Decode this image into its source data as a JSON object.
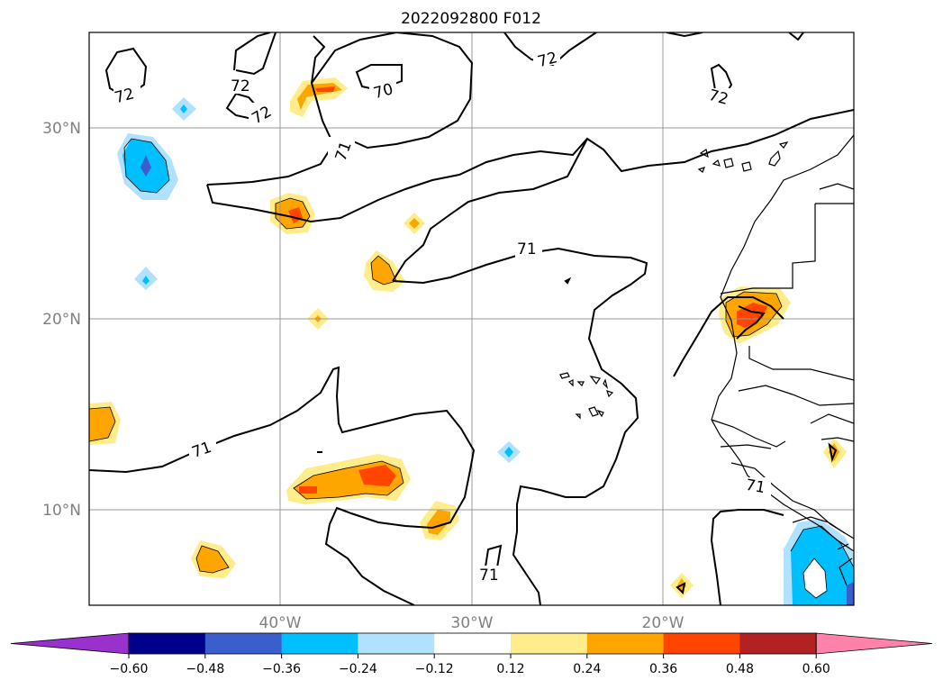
{
  "title": "2022092800 F012",
  "map": {
    "lat_labels": [
      "30°N",
      "20°N",
      "10°N"
    ],
    "lon_labels": [
      "40°W",
      "30°W",
      "20°W"
    ],
    "contour_levels": [
      "70",
      "71",
      "72"
    ],
    "contour_labels": [
      {
        "text": "72",
        "level": 72
      },
      {
        "text": "72",
        "level": 72
      },
      {
        "text": "72",
        "level": 72
      },
      {
        "text": "70",
        "level": 70
      },
      {
        "text": "72",
        "level": 72
      },
      {
        "text": "72",
        "level": 72
      },
      {
        "text": "71",
        "level": 71
      },
      {
        "text": "71",
        "level": 71
      },
      {
        "text": "71",
        "level": 71
      },
      {
        "text": "71",
        "level": 71
      },
      {
        "text": "71",
        "level": 71
      }
    ]
  },
  "colorbar": {
    "ticks": [
      "−0.60",
      "−0.48",
      "−0.36",
      "−0.24",
      "−0.12",
      "0.12",
      "0.24",
      "0.36",
      "0.48",
      "0.60"
    ],
    "colors": [
      "#9932cc",
      "#00008b",
      "#3a5fcd",
      "#00bfff",
      "#b0e2ff",
      "#ffffff",
      "#ffec8b",
      "#ffa500",
      "#ff4500",
      "#b22222",
      "#ff82ab"
    ]
  }
}
